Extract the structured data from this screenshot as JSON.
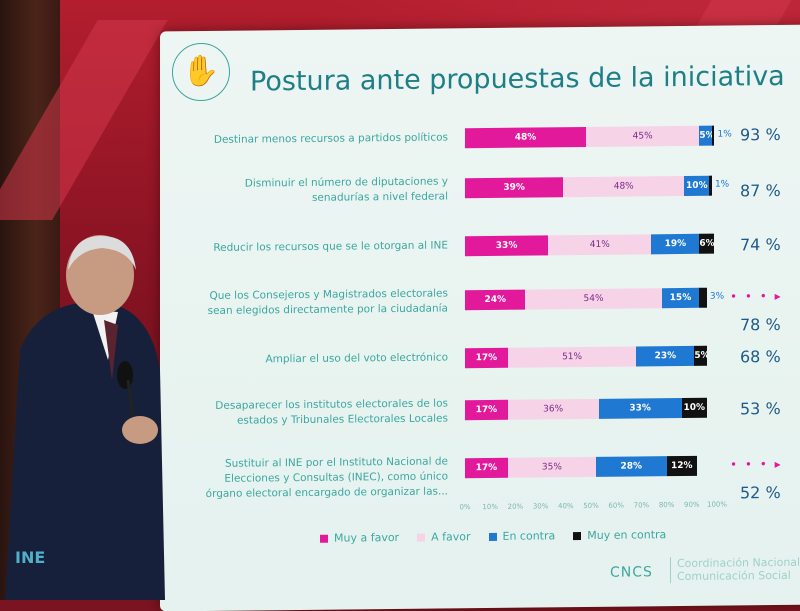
{
  "slide": {
    "title": "Postura ante propuestas de la iniciativa",
    "logo_icon": "hand-vote-icon",
    "rows": [
      {
        "label": "Destinar menos recursos a partidos políticos",
        "muy_a_favor": 48,
        "a_favor": 45,
        "en_contra": 5,
        "muy_en_contra": 1,
        "shown_mf": "48%",
        "shown_af": "45%",
        "shown_ec": "5%",
        "shown_mec": "1%",
        "total": "93 %"
      },
      {
        "label": "Disminuir el número de diputaciones y senadurías a nivel federal",
        "muy_a_favor": 39,
        "a_favor": 48,
        "en_contra": 10,
        "muy_en_contra": 1,
        "shown_mf": "39%",
        "shown_af": "48%",
        "shown_ec": "10%",
        "shown_mec": "1%",
        "total": "87 %"
      },
      {
        "label": "Reducir los recursos que se le otorgan al INE",
        "muy_a_favor": 33,
        "a_favor": 41,
        "en_contra": 19,
        "muy_en_contra": 6,
        "shown_mf": "33%",
        "shown_af": "41%",
        "shown_ec": "19%",
        "shown_mec": "6%",
        "total": "74 %"
      },
      {
        "label": "Que los Consejeros y Magistrados electorales sean elegidos directamente por la ciudadanía",
        "muy_a_favor": 24,
        "a_favor": 54,
        "en_contra": 15,
        "muy_en_contra": 3,
        "shown_mf": "24%",
        "shown_af": "54%",
        "shown_ec": "15%",
        "shown_mec": "3%",
        "total": "78 %"
      },
      {
        "label": "Ampliar el uso del voto electrónico",
        "muy_a_favor": 17,
        "a_favor": 51,
        "en_contra": 23,
        "muy_en_contra": 5,
        "shown_mf": "17%",
        "shown_af": "51%",
        "shown_ec": "23%",
        "shown_mec": "5%",
        "total": "68 %"
      },
      {
        "label": "Desaparecer los institutos electorales de los estados y Tribunales Electorales Locales",
        "muy_a_favor": 17,
        "a_favor": 36,
        "en_contra": 33,
        "muy_en_contra": 10,
        "shown_mf": "17%",
        "shown_af": "36%",
        "shown_ec": "33%",
        "shown_mec": "10%",
        "total": "53 %"
      },
      {
        "label": "Sustituir al INE por el Instituto Nacional de Elecciones y Consultas (INEC), como único órgano electoral encargado de organizar las...",
        "muy_a_favor": 17,
        "a_favor": 35,
        "en_contra": 28,
        "muy_en_contra": 12,
        "shown_mf": "17%",
        "shown_af": "35%",
        "shown_ec": "28%",
        "shown_mec": "12%",
        "total": "52 %"
      }
    ],
    "ticks": [
      "0%",
      "10%",
      "20%",
      "30%",
      "40%",
      "50%",
      "60%",
      "70%",
      "80%",
      "90%",
      "100%"
    ],
    "legend": [
      "Muy a favor",
      "A favor",
      "En contra",
      "Muy en contra"
    ],
    "footer_logo": "CNCS",
    "footer_line1": "Coordinación Nacional de",
    "footer_line2": "Comunicación Social",
    "bottom_left_logo": "INE"
  },
  "colors": {
    "muy_a_favor": "#e3199b",
    "a_favor": "#f6d3e6",
    "en_contra": "#1f78d1",
    "muy_en_contra": "#111111",
    "title": "#1f7f86"
  }
}
